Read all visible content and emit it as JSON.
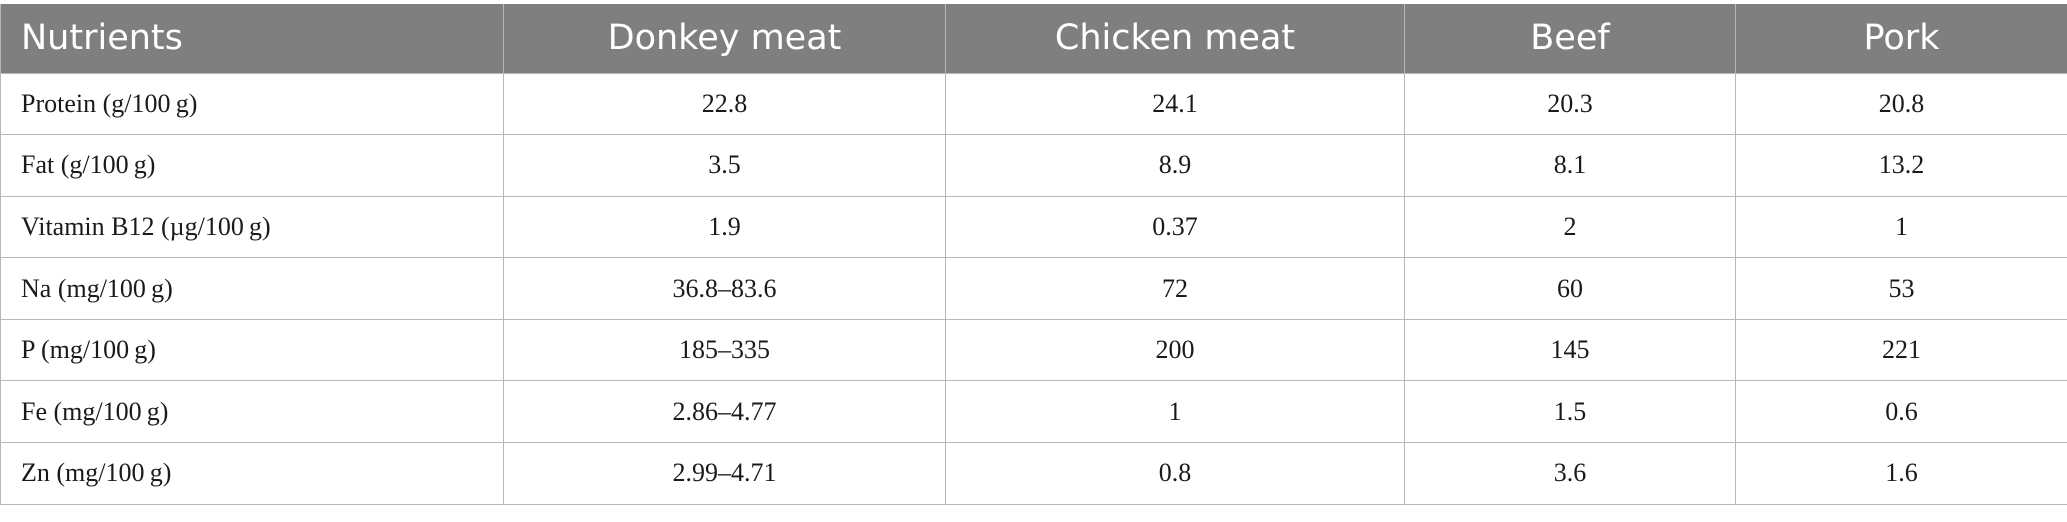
{
  "table": {
    "headers": [
      "Nutrients",
      "Donkey meat",
      "Chicken meat",
      "Beef",
      "Pork"
    ],
    "rows": [
      [
        "Protein (g/100 g)",
        "22.8",
        "24.1",
        "20.3",
        "20.8"
      ],
      [
        "Fat (g/100 g)",
        "3.5",
        "8.9",
        "8.1",
        "13.2"
      ],
      [
        "Vitamin B12 (µg/100 g)",
        "1.9",
        "0.37",
        "2",
        "1"
      ],
      [
        "Na (mg/100 g)",
        "36.8–83.6",
        "72",
        "60",
        "53"
      ],
      [
        "P (mg/100 g)",
        "185–335",
        "200",
        "145",
        "221"
      ],
      [
        "Fe (mg/100 g)",
        "2.86–4.77",
        "1",
        "1.5",
        "0.6"
      ],
      [
        "Zn (mg/100 g)",
        "2.99–4.71",
        "0.8",
        "3.6",
        "1.6"
      ]
    ]
  },
  "colors": {
    "header_bg": "#7f7f7f",
    "header_text": "#ffffff",
    "border": "#b8b8b8",
    "body_text": "#1a1a1a"
  }
}
